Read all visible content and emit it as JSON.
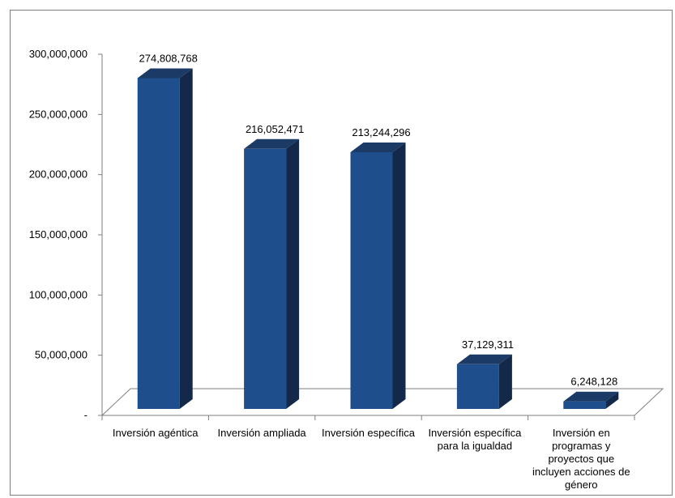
{
  "chart_data": {
    "type": "bar",
    "categories": [
      "Inversión agéntica",
      "Inversión ampliada",
      "Inversión específica",
      "Inversión específica para la igualdad",
      "Inversión en programas y proyectos que incluyen acciones de género"
    ],
    "values": [
      274808768,
      216052471,
      213244296,
      37129311,
      6248128
    ],
    "value_labels": [
      "274,808,768",
      "216,052,471",
      "213,244,296",
      "37,129,311",
      "6,248,128"
    ],
    "y_ticks": [
      "-",
      "50,000,000",
      "100,000,000",
      "150,000,000",
      "200,000,000",
      "250,000,000",
      "300,000,000"
    ],
    "ylim": [
      0,
      300000000
    ],
    "y_step": 50000000,
    "title": "",
    "xlabel": "",
    "ylabel": "",
    "grid": false,
    "legend": "none",
    "style": "3d-column",
    "colors": {
      "bar_front": "#1f4e8c",
      "bar_side": "#14294a",
      "bar_top": "#1b3a66",
      "axis": "#7f7f7f"
    }
  }
}
